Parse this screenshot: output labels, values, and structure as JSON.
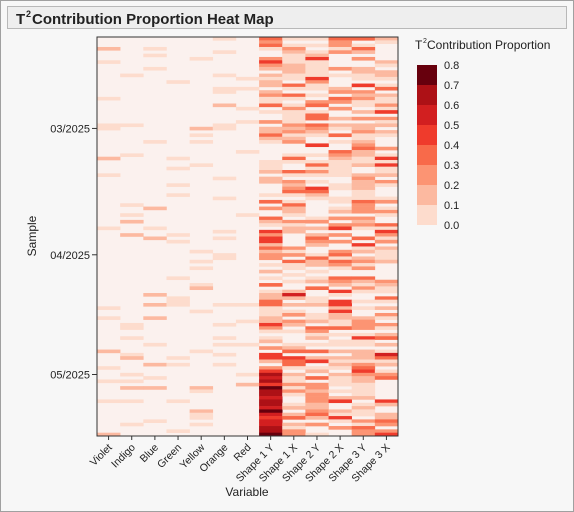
{
  "window": {
    "title_prefix": "T",
    "title_sup": "2",
    "title_rest": " Contribution Proportion Heat Map"
  },
  "legend": {
    "title_prefix": "T",
    "title_sup": "2",
    "title_rest": " Contribution Proportion",
    "ticks": [
      "0.8",
      "0.7",
      "0.6",
      "0.5",
      "0.4",
      "0.3",
      "0.2",
      "0.1",
      "0.0"
    ],
    "colors": [
      "#fbf1ee",
      "#fddccd",
      "#fcb9a0",
      "#fc9473",
      "#f86a4a",
      "#ef3b2c",
      "#d21f20",
      "#ad1116",
      "#67000d"
    ]
  },
  "chart_data": {
    "type": "heatmap",
    "title": "T² Contribution Proportion Heat Map",
    "xlabel": "Variable",
    "ylabel": "Sample",
    "variables": [
      "Violet",
      "Indigo",
      "Blue",
      "Green",
      "Yellow",
      "Orange",
      "Red",
      "Shape 1 Y",
      "Shape 1 X",
      "Shape 2 Y",
      "Shape 2 X",
      "Shape 3 Y",
      "Shape 3 X"
    ],
    "y_ticks": [
      "03/2025",
      "04/2025",
      "05/2025"
    ],
    "color_scale": {
      "min": 0.0,
      "max": 0.8,
      "step": 0.1
    },
    "sample_count": 120,
    "legend_position": "right",
    "grid": false
  }
}
